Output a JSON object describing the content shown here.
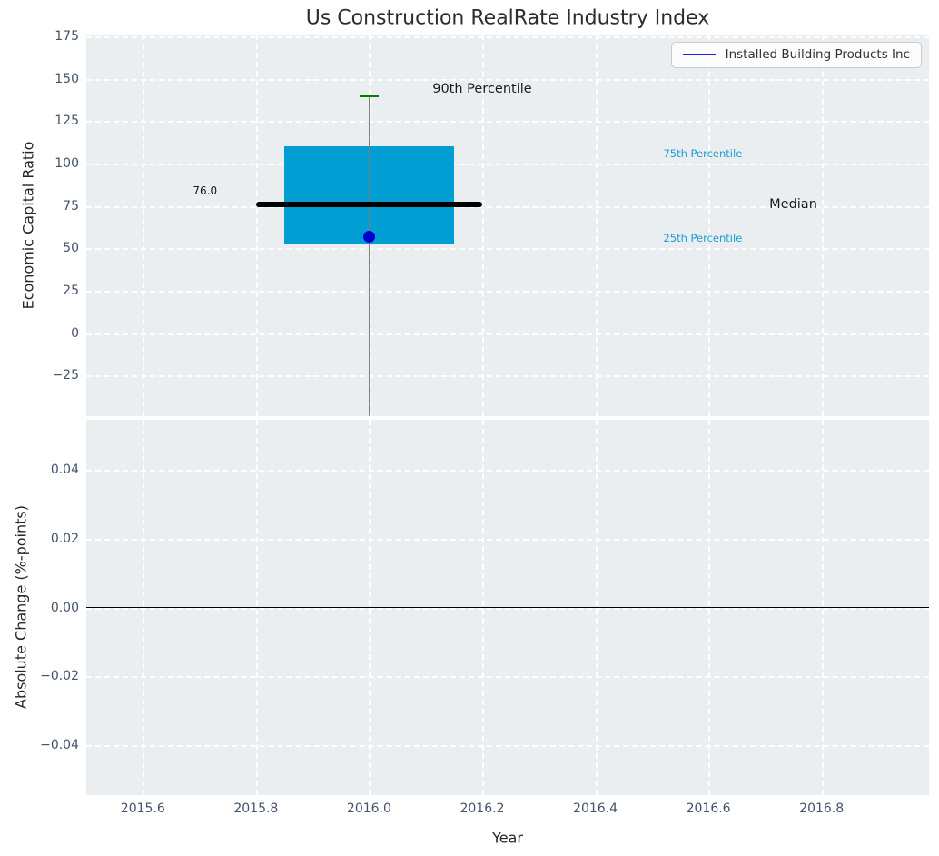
{
  "title": "Us Construction RealRate Industry Index",
  "colors": {
    "figure_bg": "#ffffff",
    "axes_bg": "#ebeef1",
    "gridline": "#ffffff",
    "tick_label": "#43536b",
    "box_fill": "#009ed3",
    "median_line": "#000000",
    "whisker": "#7f7f7f",
    "cap": "#008000",
    "company_point": "#0000cc",
    "legend_line": "#2222dd",
    "percentile_text": "#1b9dd1",
    "annotation_text": "#1a1a1a",
    "zero_line": "#000000"
  },
  "chart_data": [
    {
      "type": "boxplot",
      "title": "Us Construction RealRate Industry Index",
      "ylabel": "Economic Capital Ratio",
      "xlim": [
        2015.5,
        2016.99
      ],
      "ylim": [
        -49,
        176
      ],
      "grid": "white dashed, on",
      "yticks": [
        175,
        150,
        125,
        100,
        75,
        50,
        25,
        0,
        -25
      ],
      "ytick_labels": [
        "175",
        "150",
        "125",
        "100",
        "75",
        "50",
        "25",
        "0",
        "−25"
      ],
      "xticks": [
        2015.6,
        2015.8,
        2016.0,
        2016.2,
        2016.4,
        2016.6,
        2016.8
      ],
      "box": {
        "x": 2016.0,
        "p25": 52,
        "median": 76,
        "p75": 110,
        "p90": 140,
        "whisker_low_offscale_below": true,
        "median_value_label": "76.0",
        "box_color": "#009ed3",
        "median_color": "#000000",
        "cap_color": "#008000",
        "whisker_color": "#7f7f7f"
      },
      "company_point": {
        "x": 2016.0,
        "y": 57,
        "color": "#0000cc"
      },
      "annotations": [
        {
          "text": "76.0",
          "x": 2015.71,
          "y": 84,
          "color": "#1a1a1a",
          "size": 12
        },
        {
          "text": "90th Percentile",
          "x": 2016.2,
          "y": 144,
          "color": "#1a1a1a",
          "size": 14.5
        },
        {
          "text": "75th Percentile",
          "x": 2016.59,
          "y": 106,
          "color": "#1b9dd1",
          "size": 11.5
        },
        {
          "text": "25th Percentile",
          "x": 2016.59,
          "y": 56,
          "color": "#1b9dd1",
          "size": 11.5
        },
        {
          "text": "Median",
          "x": 2016.75,
          "y": 76,
          "color": "#1a1a1a",
          "size": 14.5
        }
      ],
      "legend": {
        "label": "Installed Building Products Inc",
        "line_color": "#2222dd",
        "position": "upper right"
      }
    },
    {
      "type": "line",
      "ylabel": "Absolute Change (%-points)",
      "xlabel": "Year",
      "xlim": [
        2015.5,
        2016.99
      ],
      "ylim": [
        -0.0547,
        0.0547
      ],
      "grid": "white dashed, on",
      "yticks": [
        0.04,
        0.02,
        0.0,
        -0.02,
        -0.04
      ],
      "ytick_labels": [
        "0.04",
        "0.02",
        "0.00",
        "−0.02",
        "−0.04"
      ],
      "xticks": [
        2015.6,
        2015.8,
        2016.0,
        2016.2,
        2016.4,
        2016.6,
        2016.8
      ],
      "xtick_labels": [
        "2015.6",
        "2015.8",
        "2016.0",
        "2016.2",
        "2016.4",
        "2016.6",
        "2016.8"
      ],
      "zero_line": {
        "y": 0.0,
        "color": "#000000"
      },
      "series": []
    }
  ]
}
